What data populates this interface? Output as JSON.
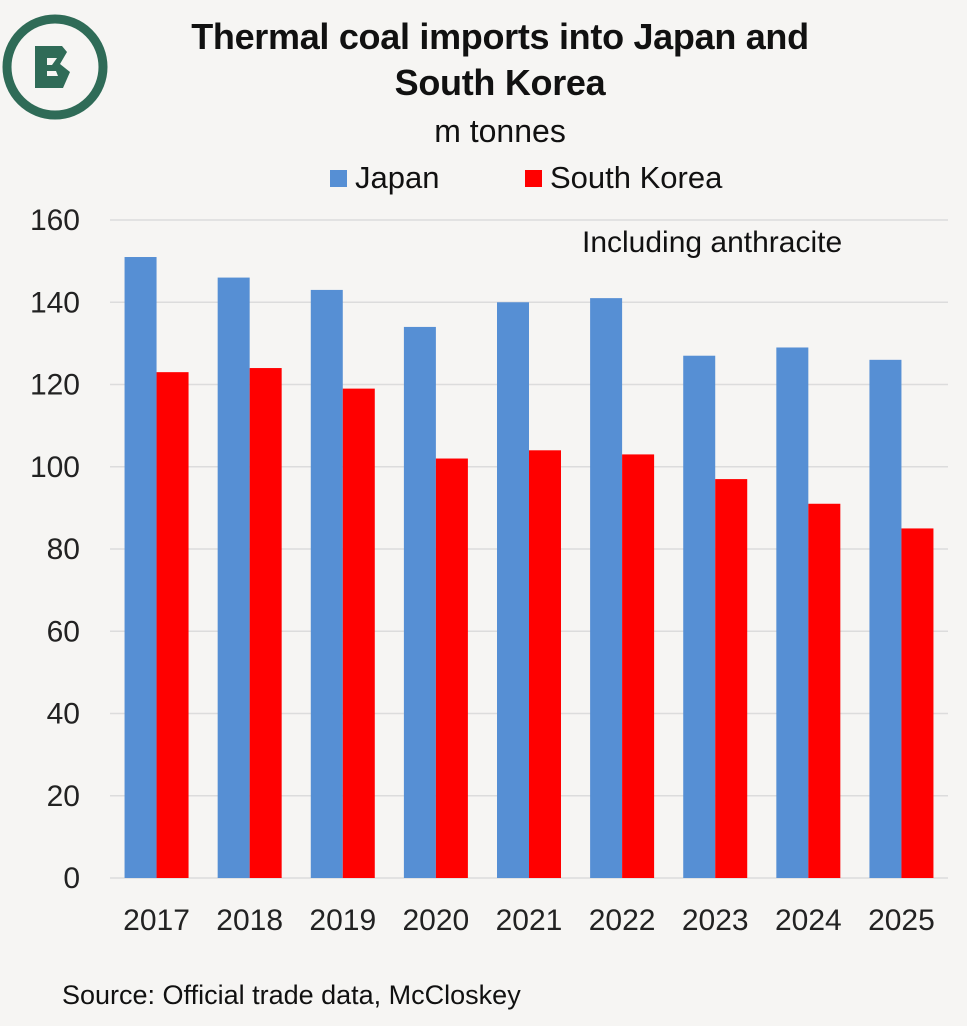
{
  "header": {
    "title_line1": "Thermal coal imports into Japan and",
    "title_line2": "South Korea",
    "subtitle": "m tonnes"
  },
  "colors": {
    "japan": "#568fd4",
    "south_korea": "#ff0000",
    "logo": "#2f6b57",
    "gridline": "#dcdcdc",
    "background": "#f6f5f3"
  },
  "chart_data": {
    "type": "bar",
    "title": "Thermal coal imports into Japan and South Korea",
    "ylabel": "m tonnes",
    "xlabel": "",
    "categories": [
      "2017",
      "2018",
      "2019",
      "2020",
      "2021",
      "2022",
      "2023",
      "2024",
      "2025"
    ],
    "series": [
      {
        "name": "Japan",
        "color": "#568fd4",
        "values": [
          151,
          146,
          143,
          134,
          140,
          141,
          127,
          129,
          126
        ]
      },
      {
        "name": "South Korea",
        "color": "#ff0000",
        "values": [
          123,
          124,
          119,
          102,
          104,
          103,
          97,
          91,
          85
        ]
      }
    ],
    "ylim": [
      0,
      160
    ],
    "yticks": [
      "0",
      "20",
      "40",
      "60",
      "80",
      "100",
      "120",
      "140",
      "160"
    ],
    "grid": true,
    "legend_position": "top-center",
    "annotation": "Including anthracite"
  },
  "footer": {
    "source": "Source: Official trade data, McCloskey"
  },
  "logo": {
    "icon": "circle-b-logo-icon"
  }
}
